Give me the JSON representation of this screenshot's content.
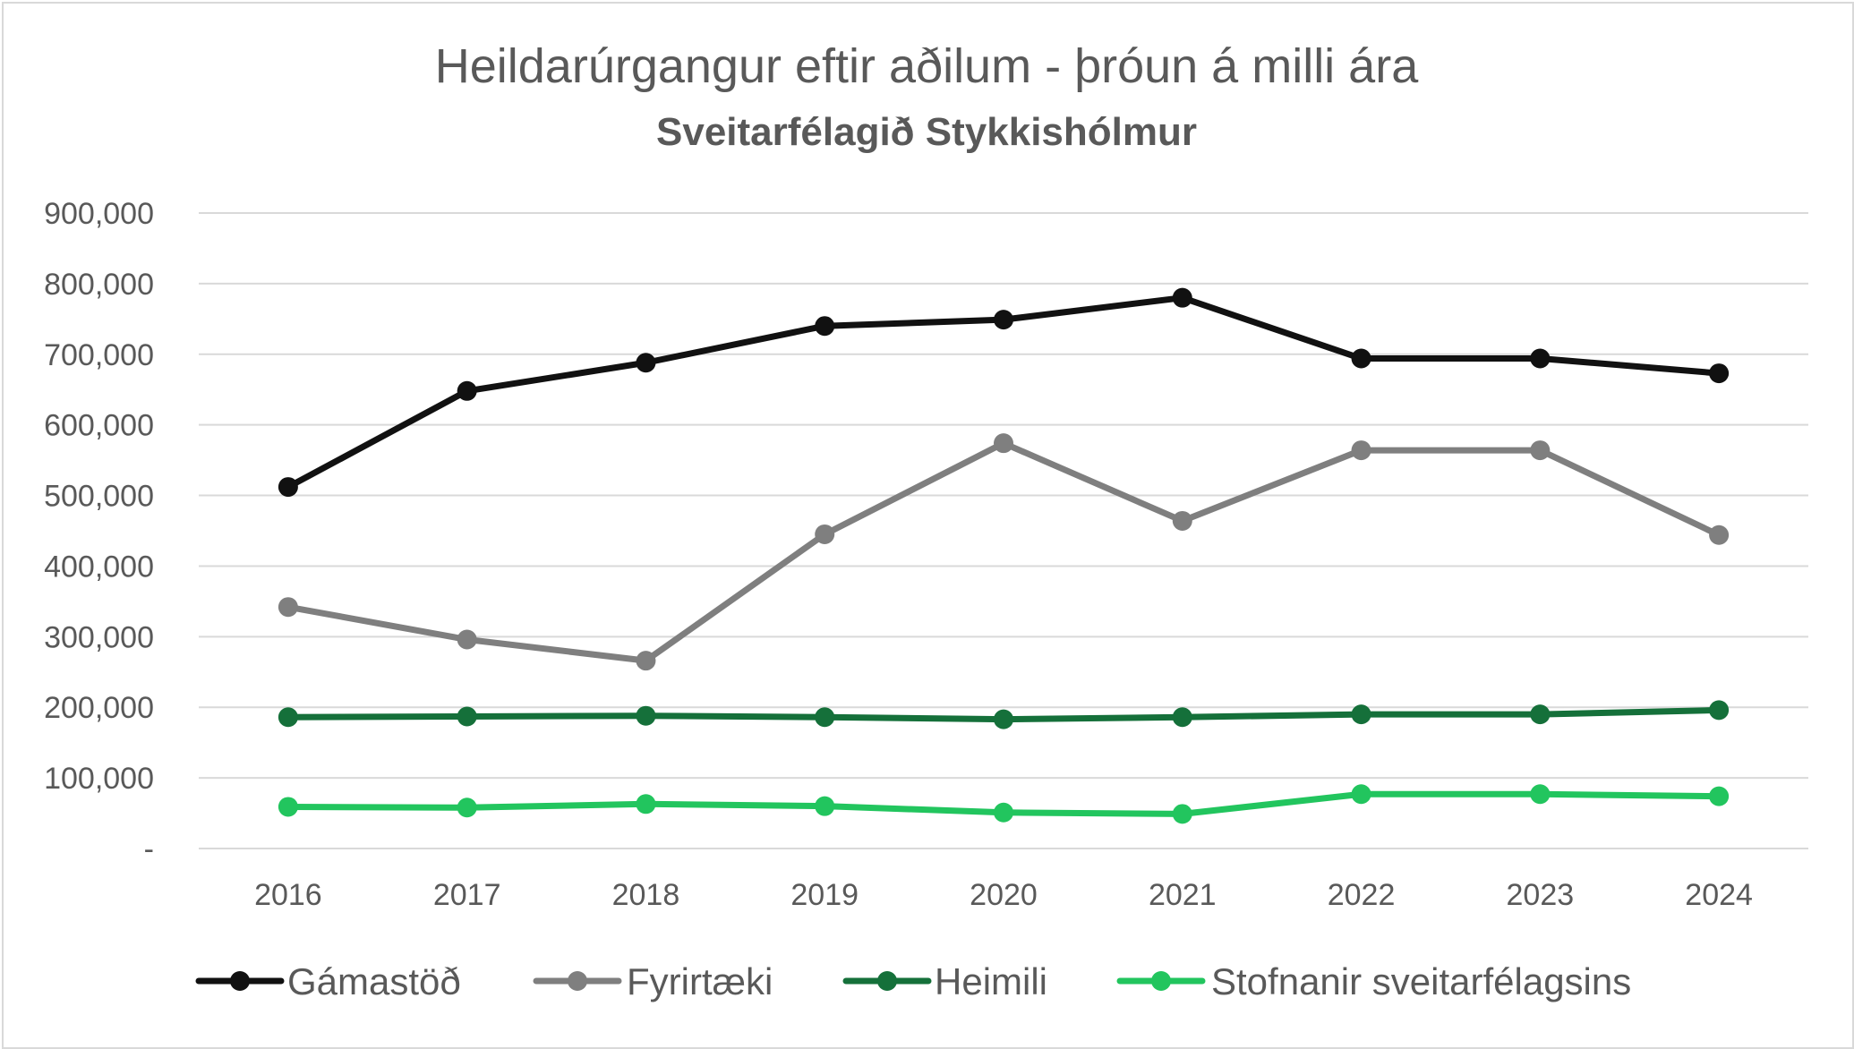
{
  "chart_data": {
    "type": "line",
    "title": "Heildarúrgangur eftir aðilum - þróun á milli ára",
    "subtitle": "Sveitarfélagið Stykkishólmur",
    "categories": [
      "2016",
      "2017",
      "2018",
      "2019",
      "2020",
      "2021",
      "2022",
      "2023",
      "2024"
    ],
    "y_ticks": [
      {
        "value": 0,
        "label": "-"
      },
      {
        "value": 100000,
        "label": "100,000"
      },
      {
        "value": 200000,
        "label": "200,000"
      },
      {
        "value": 300000,
        "label": "300,000"
      },
      {
        "value": 400000,
        "label": "400,000"
      },
      {
        "value": 500000,
        "label": "500,000"
      },
      {
        "value": 600000,
        "label": "600,000"
      },
      {
        "value": 700000,
        "label": "700,000"
      },
      {
        "value": 800000,
        "label": "800,000"
      },
      {
        "value": 900000,
        "label": "900,000"
      }
    ],
    "ylim": [
      0,
      900000
    ],
    "grid": true,
    "legend_position": "bottom",
    "series": [
      {
        "name": "Gámastöð",
        "color": "#111111",
        "values": [
          512000,
          648000,
          688000,
          740000,
          749000,
          780000,
          694000,
          694000,
          673000
        ]
      },
      {
        "name": "Fyrirtæki",
        "color": "#7f7f7f",
        "values": [
          342000,
          296000,
          266000,
          445000,
          574000,
          464000,
          564000,
          564000,
          444000
        ]
      },
      {
        "name": "Heimili",
        "color": "#15703a",
        "values": [
          186000,
          187000,
          188000,
          186000,
          183000,
          186000,
          190000,
          190000,
          196000
        ]
      },
      {
        "name": "Stofnanir sveitarfélagsins",
        "color": "#22c55e",
        "values": [
          59000,
          58000,
          63000,
          60000,
          51000,
          49000,
          77000,
          77000,
          74000
        ]
      }
    ]
  }
}
